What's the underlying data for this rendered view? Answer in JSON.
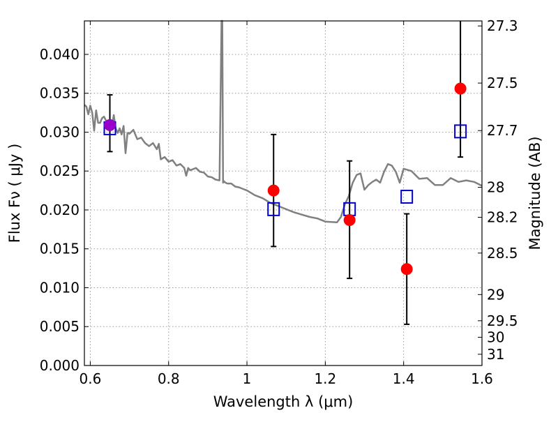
{
  "chart_data": {
    "type": "scatter",
    "title": "",
    "xlabel": "Wavelength  λ (μm)",
    "ylabel": "Flux  Fν  ( μJy )",
    "y2label": "Magnitude (AB)",
    "xlim": [
      0.585,
      1.6
    ],
    "ylim": [
      0.0,
      0.0443
    ],
    "grid": true,
    "x_ticks": [
      {
        "value": 0.6,
        "label": "0.6"
      },
      {
        "value": 0.8,
        "label": "0.8"
      },
      {
        "value": 1.0,
        "label": "1"
      },
      {
        "value": 1.2,
        "label": "1.2"
      },
      {
        "value": 1.4,
        "label": "1.4"
      },
      {
        "value": 1.6,
        "label": "1.6"
      }
    ],
    "y_ticks": [
      {
        "value": 0.0,
        "label": "0.000"
      },
      {
        "value": 0.005,
        "label": "0.005"
      },
      {
        "value": 0.01,
        "label": "0.010"
      },
      {
        "value": 0.015,
        "label": "0.015"
      },
      {
        "value": 0.02,
        "label": "0.020"
      },
      {
        "value": 0.025,
        "label": "0.025"
      },
      {
        "value": 0.03,
        "label": "0.030"
      },
      {
        "value": 0.035,
        "label": "0.035"
      },
      {
        "value": 0.04,
        "label": "0.040"
      }
    ],
    "y2_ticks": [
      {
        "mag": 27.3,
        "label": "27.3"
      },
      {
        "mag": 27.5,
        "label": "27.5"
      },
      {
        "mag": 27.7,
        "label": "27.7"
      },
      {
        "mag": 28.0,
        "label": "28"
      },
      {
        "mag": 28.2,
        "label": "28.2"
      },
      {
        "mag": 28.5,
        "label": "28.5"
      },
      {
        "mag": 29.0,
        "label": "29"
      },
      {
        "mag": 29.5,
        "label": "29.5"
      },
      {
        "mag": 30.0,
        "label": "30"
      },
      {
        "mag": 31.0,
        "label": "31"
      }
    ],
    "colors": {
      "model": "#808080",
      "observed": "#ff0000",
      "model_phot": "#0000cc",
      "highlight": "#9900cc",
      "errorbar": "#000000",
      "grid": "#999999"
    },
    "series": [
      {
        "kind": "line",
        "x": [
          0.585,
          0.59,
          0.595,
          0.6,
          0.605,
          0.61,
          0.615,
          0.62,
          0.625,
          0.63,
          0.635,
          0.64,
          0.645,
          0.65,
          0.655,
          0.66,
          0.665,
          0.67,
          0.675,
          0.68,
          0.685,
          0.69,
          0.695,
          0.7,
          0.71,
          0.72,
          0.73,
          0.74,
          0.75,
          0.76,
          0.77,
          0.775,
          0.78,
          0.79,
          0.8,
          0.81,
          0.82,
          0.83,
          0.84,
          0.845,
          0.85,
          0.855,
          0.86,
          0.87,
          0.88,
          0.89,
          0.9,
          0.91,
          0.92,
          0.93,
          0.935,
          0.937,
          0.939,
          0.941,
          0.945,
          0.95,
          0.96,
          0.97,
          0.98,
          0.99,
          1.0,
          1.02,
          1.04,
          1.06,
          1.08,
          1.1,
          1.12,
          1.14,
          1.16,
          1.18,
          1.2,
          1.23,
          1.24,
          1.25,
          1.26,
          1.27,
          1.28,
          1.29,
          1.3,
          1.31,
          1.32,
          1.33,
          1.34,
          1.35,
          1.36,
          1.37,
          1.38,
          1.39,
          1.4,
          1.42,
          1.44,
          1.46,
          1.48,
          1.5,
          1.52,
          1.54,
          1.56,
          1.58,
          1.6
        ],
        "y": [
          0.0335,
          0.0333,
          0.0323,
          0.0334,
          0.0325,
          0.0302,
          0.0328,
          0.0312,
          0.0312,
          0.0318,
          0.032,
          0.0315,
          0.031,
          0.0316,
          0.0307,
          0.0322,
          0.0305,
          0.0299,
          0.0305,
          0.0297,
          0.0308,
          0.0273,
          0.0299,
          0.0298,
          0.0303,
          0.0291,
          0.0293,
          0.0286,
          0.0282,
          0.0286,
          0.0278,
          0.0285,
          0.0265,
          0.0268,
          0.0262,
          0.0264,
          0.0257,
          0.0259,
          0.0254,
          0.0244,
          0.0254,
          0.0251,
          0.0252,
          0.0254,
          0.0249,
          0.0248,
          0.0243,
          0.0242,
          0.0239,
          0.0238,
          0.0443,
          0.0443,
          0.0235,
          0.0237,
          0.0235,
          0.0234,
          0.0234,
          0.023,
          0.0229,
          0.0227,
          0.0225,
          0.0219,
          0.0215,
          0.0209,
          0.0205,
          0.0201,
          0.0197,
          0.0194,
          0.0191,
          0.0189,
          0.0185,
          0.0184,
          0.0191,
          0.0207,
          0.0218,
          0.0235,
          0.0245,
          0.0247,
          0.0226,
          0.0232,
          0.0236,
          0.0239,
          0.0235,
          0.0249,
          0.0259,
          0.0257,
          0.0249,
          0.0235,
          0.0253,
          0.025,
          0.024,
          0.0241,
          0.0232,
          0.0232,
          0.0241,
          0.0236,
          0.0238,
          0.0236,
          0.0231
        ]
      },
      {
        "kind": "points",
        "marker": "circle",
        "x": [
          0.65,
          1.068,
          1.262,
          1.408,
          1.545
        ],
        "y": [
          0.0309,
          0.0225,
          0.0187,
          0.0124,
          0.0356
        ],
        "yerr_low": [
          0.0275,
          0.0153,
          0.0112,
          0.0053,
          0.0268
        ],
        "yerr_high": [
          0.0348,
          0.0297,
          0.0263,
          0.0195,
          0.0443
        ]
      },
      {
        "kind": "points",
        "marker": "square",
        "x": [
          0.65,
          1.068,
          1.262,
          1.408,
          1.545
        ],
        "y": [
          0.0305,
          0.0201,
          0.0201,
          0.0217,
          0.0301
        ]
      }
    ]
  }
}
